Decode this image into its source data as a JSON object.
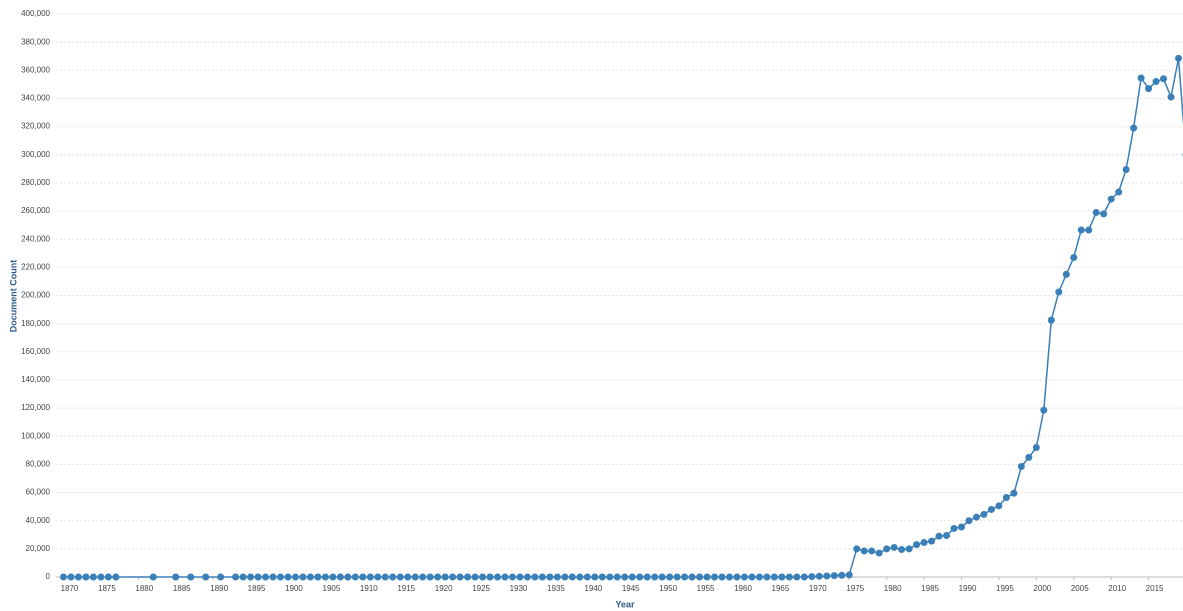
{
  "chart_data": {
    "type": "line",
    "x_label": "Year",
    "y_label": "Document Count",
    "x": [
      1870,
      1871,
      1872,
      1873,
      1874,
      1875,
      1876,
      1877,
      1882,
      1885,
      1887,
      1889,
      1891,
      1893,
      1894,
      1895,
      1896,
      1897,
      1898,
      1899,
      1900,
      1901,
      1902,
      1903,
      1904,
      1905,
      1906,
      1907,
      1908,
      1909,
      1910,
      1911,
      1912,
      1913,
      1914,
      1915,
      1916,
      1917,
      1918,
      1919,
      1920,
      1921,
      1922,
      1923,
      1924,
      1925,
      1926,
      1927,
      1928,
      1929,
      1930,
      1931,
      1932,
      1933,
      1934,
      1935,
      1936,
      1937,
      1938,
      1939,
      1940,
      1941,
      1942,
      1943,
      1944,
      1945,
      1946,
      1947,
      1948,
      1949,
      1950,
      1951,
      1952,
      1953,
      1954,
      1955,
      1956,
      1957,
      1958,
      1959,
      1960,
      1961,
      1962,
      1963,
      1964,
      1965,
      1966,
      1967,
      1968,
      1969,
      1970,
      1971,
      1972,
      1973,
      1974,
      1975,
      1976,
      1977,
      1978,
      1979,
      1980,
      1981,
      1982,
      1983,
      1984,
      1985,
      1986,
      1987,
      1988,
      1989,
      1990,
      1991,
      1992,
      1993,
      1994,
      1995,
      1996,
      1997,
      1998,
      1999,
      2000,
      2001,
      2002,
      2003,
      2004,
      2005,
      2006,
      2007,
      2008,
      2009,
      2010,
      2011,
      2012,
      2013,
      2014,
      2015,
      2016,
      2017,
      2018,
      2019,
      2020
    ],
    "series": [
      {
        "name": "Document Count",
        "color": "#3a7fb8",
        "values": [
          0,
          0,
          0,
          0,
          0,
          0,
          0,
          0,
          0,
          0,
          0,
          0,
          0,
          0,
          0,
          0,
          0,
          0,
          0,
          0,
          0,
          0,
          0,
          0,
          0,
          0,
          0,
          0,
          0,
          0,
          0,
          0,
          0,
          0,
          0,
          0,
          0,
          0,
          0,
          0,
          0,
          0,
          0,
          0,
          0,
          0,
          0,
          0,
          0,
          0,
          0,
          0,
          0,
          0,
          0,
          0,
          0,
          0,
          0,
          0,
          0,
          0,
          0,
          0,
          0,
          0,
          0,
          0,
          0,
          0,
          0,
          0,
          0,
          0,
          0,
          0,
          0,
          0,
          0,
          0,
          0,
          0,
          0,
          0,
          0,
          0,
          0,
          0,
          0,
          0,
          300,
          500,
          700,
          1000,
          1200,
          1500,
          20000,
          18500,
          18500,
          17000,
          20000,
          21000,
          19500,
          20000,
          23000,
          24500,
          25500,
          29000,
          29500,
          34500,
          35500,
          40000,
          42500,
          44500,
          48000,
          50500,
          56500,
          59500,
          78500,
          85000,
          92000,
          118500,
          182500,
          202500,
          215000,
          227000,
          246500,
          246500,
          259000,
          258000,
          268500,
          273500,
          289500,
          319000,
          354500,
          347000,
          352000,
          354000,
          341000,
          368500,
          300000
        ]
      }
    ],
    "xlim": [
      1869,
      2020
    ],
    "xticks": [
      1870,
      1875,
      1880,
      1885,
      1890,
      1895,
      1900,
      1905,
      1910,
      1915,
      1920,
      1925,
      1930,
      1935,
      1940,
      1945,
      1950,
      1955,
      1960,
      1965,
      1970,
      1975,
      1980,
      1985,
      1990,
      1995,
      2000,
      2005,
      2010,
      2015,
      2020
    ],
    "ylim": [
      0,
      400000
    ],
    "yticks": [
      0,
      {
        "value": 20000,
        "label": "20,000"
      },
      {
        "value": 40000,
        "label": "40,000"
      },
      {
        "value": 60000,
        "label": "60,000"
      },
      {
        "value": 80000,
        "label": "80,000"
      },
      {
        "value": 100000,
        "label": "100,000"
      },
      {
        "value": 120000,
        "label": "120,000"
      },
      {
        "value": 140000,
        "label": "140,000"
      },
      {
        "value": 160000,
        "label": "160,000"
      },
      {
        "value": 180000,
        "label": "180,000"
      },
      {
        "value": 200000,
        "label": "200,000"
      },
      {
        "value": 220000,
        "label": "220,000"
      },
      {
        "value": 240000,
        "label": "240,000"
      },
      {
        "value": 260000,
        "label": "260,000"
      },
      {
        "value": 280000,
        "label": "280,000"
      },
      {
        "value": 300000,
        "label": "300,000"
      },
      {
        "value": 320000,
        "label": "320,000"
      },
      {
        "value": 340000,
        "label": "340,000"
      },
      {
        "value": 360000,
        "label": "360,000"
      },
      {
        "value": 380000,
        "label": "380,000"
      },
      {
        "value": 400000,
        "label": "400,000"
      }
    ],
    "grid": true
  }
}
